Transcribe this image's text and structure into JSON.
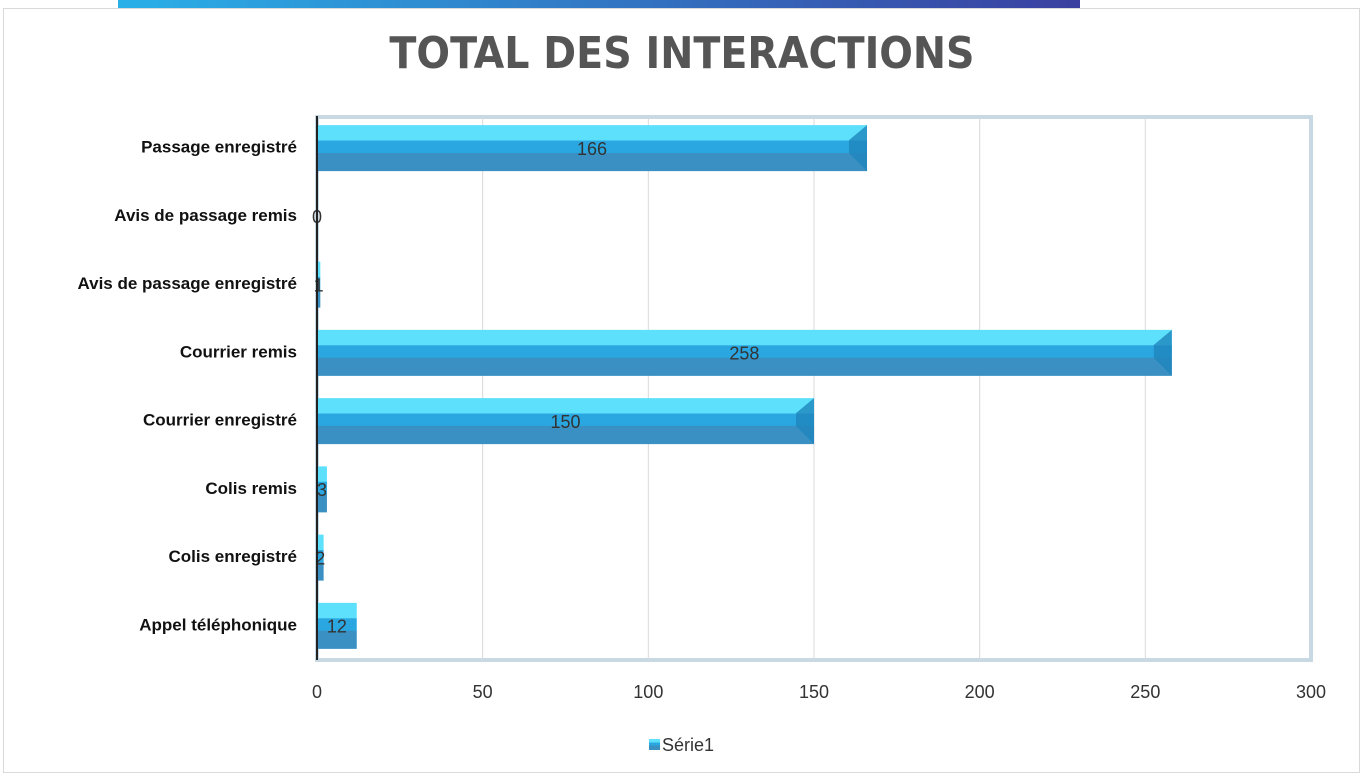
{
  "chart_data": {
    "type": "bar",
    "orientation": "horizontal",
    "title": "TOTAL DES INTERACTIONS",
    "categories": [
      "Passage enregistré",
      "Avis de passage remis",
      "Avis de passage enregistré",
      "Courrier remis",
      "Courrier enregistré",
      "Colis remis",
      "Colis enregistré",
      "Appel téléphonique"
    ],
    "series": [
      {
        "name": "Série1",
        "color": "#2aa7e0",
        "values": [
          166,
          0,
          1,
          258,
          150,
          3,
          2,
          12
        ]
      }
    ],
    "xlim": [
      0,
      300
    ],
    "xticks": [
      0,
      50,
      100,
      150,
      200,
      250,
      300
    ],
    "grid": true,
    "legend": "bottom"
  }
}
